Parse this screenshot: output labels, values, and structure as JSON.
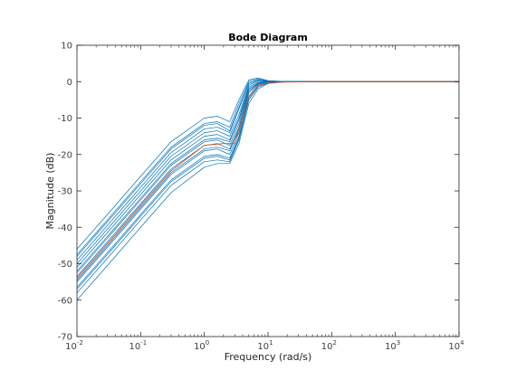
{
  "chart_data": {
    "type": "line",
    "title": "Bode Diagram",
    "xlabel": "Frequency  (rad/s)",
    "ylabel": "Magnitude (dB)",
    "xscale": "log",
    "xlim": [
      0.01,
      10000
    ],
    "ylim": [
      -70,
      10
    ],
    "grid": false,
    "legend": "none",
    "x_ticks": [
      {
        "value": 0.01,
        "base": "10",
        "exp": "-2"
      },
      {
        "value": 0.1,
        "base": "10",
        "exp": "-1"
      },
      {
        "value": 1,
        "base": "10",
        "exp": "0"
      },
      {
        "value": 10,
        "base": "10",
        "exp": "1"
      },
      {
        "value": 100,
        "base": "10",
        "exp": "2"
      },
      {
        "value": 1000,
        "base": "10",
        "exp": "3"
      },
      {
        "value": 10000,
        "base": "10",
        "exp": "4"
      }
    ],
    "y_ticks": [
      {
        "value": 10,
        "label": "10"
      },
      {
        "value": 0,
        "label": "0"
      },
      {
        "value": -10,
        "label": "-10"
      },
      {
        "value": -20,
        "label": "-20"
      },
      {
        "value": -30,
        "label": "-30"
      },
      {
        "value": -40,
        "label": "-40"
      },
      {
        "value": -50,
        "label": "-50"
      },
      {
        "value": -60,
        "label": "-60"
      },
      {
        "value": -70,
        "label": "-70"
      }
    ],
    "colors": {
      "samples": "#0072bd",
      "nominal": "#d95319",
      "axes": "#262626"
    },
    "series": [
      {
        "role": "nominal",
        "color": "#d95319",
        "x": [
          0.01,
          0.03,
          0.1,
          0.3,
          1,
          2,
          3,
          5,
          7,
          10,
          20,
          50,
          10000
        ],
        "y": [
          -54,
          -44.5,
          -34,
          -24.5,
          -17.5,
          -17,
          -17,
          -4,
          -1,
          -0.3,
          -0.1,
          0,
          0
        ]
      },
      {
        "role": "sample",
        "color": "#0072bd",
        "x": [
          0.01,
          0.03,
          0.1,
          0.3,
          1,
          1.6,
          2.5,
          3.5,
          5,
          7,
          10,
          20,
          50,
          10000
        ],
        "y": [
          -46,
          -36.5,
          -26,
          -16.5,
          -10,
          -9.5,
          -11,
          -5,
          0.5,
          1,
          0.3,
          0,
          0,
          0
        ]
      },
      {
        "role": "sample",
        "color": "#0072bd",
        "x": [
          0.01,
          0.03,
          0.1,
          0.3,
          1,
          1.6,
          2.5,
          3.5,
          5,
          7,
          10,
          20,
          50,
          10000
        ],
        "y": [
          -47.5,
          -38,
          -27.5,
          -18,
          -11.5,
          -11,
          -12.5,
          -6,
          0,
          0.8,
          0.2,
          0,
          0,
          0
        ]
      },
      {
        "role": "sample",
        "color": "#0072bd",
        "x": [
          0.01,
          0.03,
          0.1,
          0.3,
          1,
          1.6,
          2.5,
          3.5,
          5,
          7,
          10,
          20,
          50,
          10000
        ],
        "y": [
          -49,
          -39.5,
          -29,
          -19.5,
          -13,
          -12.5,
          -14,
          -7.5,
          -0.5,
          0.5,
          0.1,
          0,
          0,
          0
        ]
      },
      {
        "role": "sample",
        "color": "#0072bd",
        "x": [
          0.01,
          0.03,
          0.1,
          0.3,
          1,
          1.6,
          2.5,
          3.5,
          5,
          7,
          10,
          20,
          50,
          10000
        ],
        "y": [
          -50,
          -40.5,
          -30,
          -20.5,
          -14,
          -13.5,
          -15,
          -9,
          -1,
          0.3,
          0,
          0,
          0,
          0
        ]
      },
      {
        "role": "sample",
        "color": "#0072bd",
        "x": [
          0.01,
          0.03,
          0.1,
          0.3,
          1,
          1.6,
          2.5,
          3.5,
          5,
          7,
          10,
          20,
          50,
          10000
        ],
        "y": [
          -51,
          -41.5,
          -31,
          -21.5,
          -15,
          -14.5,
          -16,
          -10,
          -1.5,
          0,
          0,
          0,
          0,
          0
        ]
      },
      {
        "role": "sample",
        "color": "#0072bd",
        "x": [
          0.01,
          0.03,
          0.1,
          0.3,
          1,
          1.6,
          2.5,
          3.5,
          5,
          7,
          10,
          20,
          50,
          10000
        ],
        "y": [
          -52.5,
          -43,
          -32.5,
          -23,
          -16.5,
          -16,
          -17.5,
          -11.5,
          -2,
          -0.3,
          -0.1,
          0,
          0,
          0
        ]
      },
      {
        "role": "sample",
        "color": "#0072bd",
        "x": [
          0.01,
          0.03,
          0.1,
          0.3,
          1,
          1.6,
          2.5,
          3.5,
          5,
          7,
          10,
          20,
          50,
          10000
        ],
        "y": [
          -53.5,
          -44,
          -33.5,
          -24,
          -17.5,
          -17,
          -18.5,
          -12.5,
          -2.5,
          -0.5,
          -0.1,
          0,
          0,
          0
        ]
      },
      {
        "role": "sample",
        "color": "#0072bd",
        "x": [
          0.01,
          0.03,
          0.1,
          0.3,
          1,
          1.6,
          2.5,
          3.5,
          5,
          7,
          10,
          20,
          50,
          10000
        ],
        "y": [
          -55,
          -45.5,
          -35,
          -25.5,
          -19,
          -18.5,
          -20,
          -14,
          -3,
          -0.7,
          -0.2,
          0,
          0,
          0
        ]
      },
      {
        "role": "sample",
        "color": "#0072bd",
        "x": [
          0.01,
          0.03,
          0.1,
          0.3,
          1,
          1.6,
          2.5,
          3.5,
          5,
          7,
          10,
          20,
          50,
          10000
        ],
        "y": [
          -56.5,
          -47,
          -36.5,
          -27,
          -20.5,
          -20,
          -21,
          -15,
          -4,
          -1,
          -0.3,
          0,
          0,
          0
        ]
      },
      {
        "role": "sample",
        "color": "#0072bd",
        "x": [
          0.01,
          0.03,
          0.1,
          0.3,
          1,
          1.6,
          2.5,
          3.5,
          5,
          7,
          10,
          20,
          50,
          10000
        ],
        "y": [
          -58,
          -48.5,
          -38,
          -28.5,
          -22,
          -21.5,
          -22,
          -16,
          -5,
          -1.5,
          -0.4,
          0,
          0,
          0
        ]
      },
      {
        "role": "sample",
        "color": "#0072bd",
        "x": [
          0.01,
          0.03,
          0.1,
          0.3,
          1,
          1.6,
          2.5,
          3.5,
          5,
          7,
          10,
          20,
          50,
          10000
        ],
        "y": [
          -60,
          -50.5,
          -40,
          -30.5,
          -23.5,
          -22.5,
          -22.5,
          -17,
          -6,
          -2,
          -0.5,
          0,
          0,
          0
        ]
      },
      {
        "role": "sample",
        "color": "#0072bd",
        "x": [
          0.01,
          0.03,
          0.1,
          0.3,
          1,
          1.6,
          2.5,
          3.5,
          5,
          7,
          10,
          20,
          50,
          10000
        ],
        "y": [
          -48,
          -38.5,
          -28,
          -18.5,
          -12,
          -11.5,
          -13.5,
          -7,
          -0.5,
          0.5,
          0.1,
          0,
          0,
          0
        ]
      },
      {
        "role": "sample",
        "color": "#0072bd",
        "x": [
          0.01,
          0.03,
          0.1,
          0.3,
          1,
          1.6,
          2.5,
          3.5,
          5,
          7,
          10,
          20,
          50,
          10000
        ],
        "y": [
          -52,
          -42.5,
          -32,
          -22.5,
          -16,
          -15.5,
          -16.5,
          -10.5,
          -2,
          -0.3,
          -0.1,
          0,
          0,
          0
        ]
      },
      {
        "role": "sample",
        "color": "#0072bd",
        "x": [
          0.01,
          0.03,
          0.1,
          0.3,
          1,
          1.6,
          2.5,
          3.5,
          5,
          7,
          10,
          20,
          50,
          10000
        ],
        "y": [
          -57,
          -47.5,
          -37,
          -27.5,
          -21,
          -20.5,
          -21.5,
          -15.5,
          -4.5,
          -1.2,
          -0.3,
          0,
          0,
          0
        ]
      },
      {
        "role": "sample",
        "color": "#0072bd",
        "x": [
          0.01,
          0.03,
          0.1,
          0.3,
          1,
          1.6,
          2.5,
          3.5,
          5,
          7,
          10,
          20,
          50,
          10000
        ],
        "y": [
          -54.5,
          -45,
          -34.5,
          -25,
          -18.5,
          -18,
          -19,
          -13,
          -3,
          -0.6,
          -0.2,
          0,
          0,
          0
        ]
      }
    ]
  }
}
